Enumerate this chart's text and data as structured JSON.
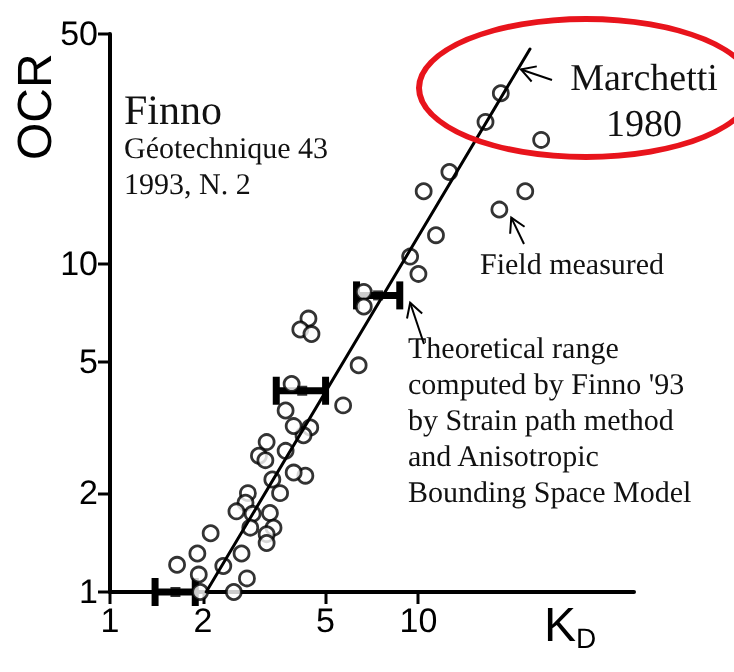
{
  "chart_data": {
    "type": "scatter",
    "xlabel": "K$_{D}$",
    "ylabel": "OCR",
    "log": "xy",
    "xlim": [
      1,
      50
    ],
    "ylim": [
      1,
      50
    ],
    "xticks": [
      1,
      2,
      5,
      10
    ],
    "yticks": [
      1,
      2,
      5,
      10,
      50
    ],
    "annotations": [
      "Finno",
      "Géotechnique 43\n1993, N. 2",
      {
        "text": "Marchetti\n1980",
        "x": 21.5,
        "y": 39
      },
      {
        "text": "Field measured",
        "x": 20,
        "y": 13.8
      },
      {
        "text": "Theoretical range\ncomputed by Finno '93\nby Strain path method\nand Anisotropic\nBounding Space Model",
        "x": 9.4,
        "y": 7.6
      }
    ],
    "series": [
      {
        "type": "scatter",
        "marker": "circle",
        "color": "#000000",
        "x": [
          18.5,
          16.5,
          25,
          12.6,
          10.4,
          22.2,
          18.3,
          11.4,
          9.4,
          10,
          6.65,
          6.65,
          6.4,
          5.7,
          4.3,
          4.4,
          4.14,
          4.5,
          3.88,
          3.71,
          4.46,
          4.24,
          3.94,
          3.22,
          3.71,
          3.04,
          3.19,
          3.94,
          3.36,
          3.56,
          2.8,
          2.75,
          2.57,
          2.9,
          3.3,
          3.39,
          2.85,
          3.22,
          2.67,
          3.22,
          2.12,
          1.92,
          1.65,
          1.94,
          2.33,
          2.78,
          2.52,
          1.96
        ],
        "values": [
          33,
          27,
          23.8,
          19,
          16.6,
          16.6,
          14.6,
          12.2,
          10.5,
          9.3,
          8.2,
          7.4,
          4.9,
          3.7,
          2.26,
          6.8,
          6.3,
          6.1,
          4.3,
          3.57,
          3.17,
          3.0,
          3.2,
          2.86,
          2.69,
          2.6,
          2.52,
          2.31,
          2.2,
          2.0,
          2.0,
          1.87,
          1.76,
          1.73,
          1.74,
          1.57,
          1.57,
          1.5,
          1.31,
          1.41,
          1.51,
          1.31,
          1.21,
          1.13,
          1.2,
          1.1,
          1.0,
          1.0
        ]
      },
      {
        "type": "line",
        "marker": "none",
        "line_style": "solid",
        "color": "#000000",
        "x": [
          2.05,
          23
        ],
        "values": [
          1,
          45
        ]
      },
      {
        "type": "scatter",
        "marker": "square",
        "color": "#000000",
        "x": [
          1.63,
          4.2,
          7.4
        ],
        "values": [
          1,
          4.1,
          8.0
        ],
        "xerrors": [
          [
            1.4,
            1.89
          ],
          [
            3.46,
            5.0
          ],
          [
            6.3,
            8.7
          ]
        ]
      }
    ]
  }
}
